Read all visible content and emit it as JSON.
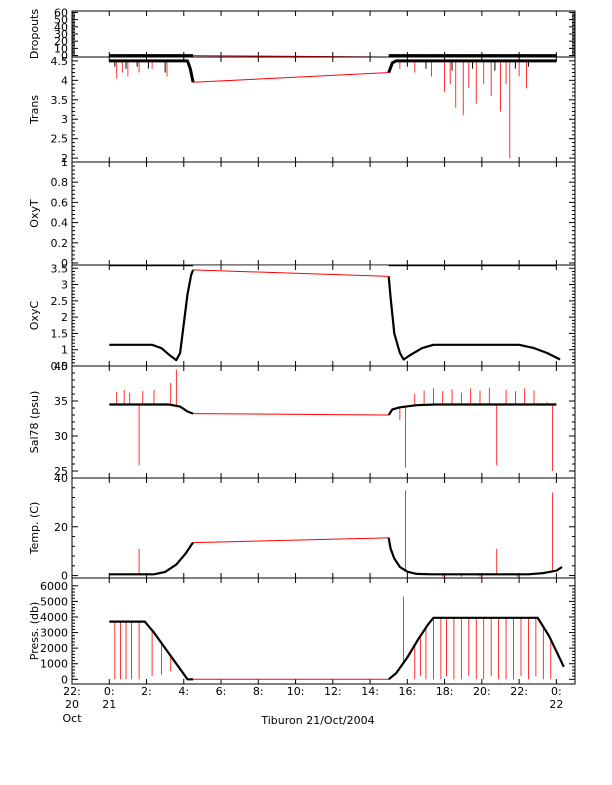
{
  "chart_data": {
    "type": "line",
    "caption": "Tiburon 21/Oct/2004",
    "colors": {
      "measured": "#000000",
      "interpolated": "#ff0000"
    },
    "x_axis": {
      "range_hours": [
        -2,
        25
      ],
      "ticks": [
        {
          "hour": -2,
          "line1": "22:",
          "line2": "20",
          "line3": "Oct"
        },
        {
          "hour": 0,
          "line1": "0:",
          "line2": "21",
          "line3": ""
        },
        {
          "hour": 2,
          "line1": "2:",
          "line2": "",
          "line3": ""
        },
        {
          "hour": 4,
          "line1": "4:",
          "line2": "",
          "line3": ""
        },
        {
          "hour": 6,
          "line1": "6:",
          "line2": "",
          "line3": ""
        },
        {
          "hour": 8,
          "line1": "8:",
          "line2": "",
          "line3": ""
        },
        {
          "hour": 10,
          "line1": "10:",
          "line2": "",
          "line3": ""
        },
        {
          "hour": 12,
          "line1": "12:",
          "line2": "",
          "line3": ""
        },
        {
          "hour": 14,
          "line1": "14:",
          "line2": "",
          "line3": ""
        },
        {
          "hour": 16,
          "line1": "16:",
          "line2": "",
          "line3": ""
        },
        {
          "hour": 18,
          "line1": "18:",
          "line2": "",
          "line3": ""
        },
        {
          "hour": 20,
          "line1": "20:",
          "line2": "",
          "line3": ""
        },
        {
          "hour": 22,
          "line1": "22:",
          "line2": "",
          "line3": ""
        },
        {
          "hour": 24,
          "line1": "0:",
          "line2": "22",
          "line3": ""
        }
      ]
    },
    "panels": [
      {
        "name": "dropouts",
        "ylabel": "Dropouts",
        "ylim": [
          -2,
          62
        ],
        "yticks": [
          0,
          10,
          20,
          30,
          40,
          50,
          60
        ],
        "measured": [
          [
            0,
            0
          ],
          [
            4.5,
            0
          ],
          [
            15,
            0
          ],
          [
            24,
            0
          ]
        ],
        "interpolated": [
          [
            4.5,
            0
          ],
          [
            15,
            -2
          ]
        ],
        "band": 1,
        "spikes_red": [],
        "spikes_black": []
      },
      {
        "name": "trans",
        "ylabel": "Trans",
        "ylim": [
          1.9,
          4.6
        ],
        "yticks": [
          2.0,
          2.5,
          3.0,
          3.5,
          4.0,
          4.5
        ],
        "measured": [
          [
            0,
            4.5
          ],
          [
            4.2,
            4.5
          ],
          [
            4.35,
            4.3
          ],
          [
            4.5,
            3.95
          ],
          [
            15,
            4.2
          ],
          [
            15.2,
            4.45
          ],
          [
            15.4,
            4.5
          ],
          [
            24,
            4.5
          ]
        ],
        "interpolated": [
          [
            4.5,
            3.95
          ],
          [
            15,
            4.2
          ]
        ],
        "band": 0.06,
        "spikes_red": [
          [
            0.4,
            4.05
          ],
          [
            0.7,
            4.2
          ],
          [
            1.0,
            4.1
          ],
          [
            1.6,
            4.2
          ],
          [
            2.3,
            4.3
          ],
          [
            3.1,
            4.1
          ],
          [
            15.6,
            4.3
          ],
          [
            16.4,
            4.2
          ],
          [
            17.3,
            4.1
          ],
          [
            18.0,
            3.7
          ],
          [
            18.3,
            3.9
          ],
          [
            18.6,
            3.3
          ],
          [
            19.0,
            3.1
          ],
          [
            19.3,
            3.8
          ],
          [
            19.7,
            3.4
          ],
          [
            20.1,
            3.9
          ],
          [
            20.5,
            3.6
          ],
          [
            21.0,
            3.2
          ],
          [
            21.3,
            3.9
          ],
          [
            21.5,
            2.0
          ],
          [
            22.0,
            4.1
          ],
          [
            22.4,
            3.8
          ]
        ],
        "spikes_black": [
          [
            0.3,
            4.35
          ],
          [
            0.9,
            4.3
          ],
          [
            1.5,
            4.35
          ],
          [
            2.1,
            4.3
          ],
          [
            3.0,
            4.2
          ],
          [
            16.0,
            4.35
          ],
          [
            17.0,
            4.3
          ],
          [
            18.4,
            4.25
          ],
          [
            19.5,
            4.3
          ],
          [
            20.7,
            4.25
          ],
          [
            21.8,
            4.3
          ],
          [
            22.5,
            4.35
          ]
        ]
      },
      {
        "name": "oxyt",
        "ylabel": "OxyT",
        "ylim": [
          -0.02,
          1.0
        ],
        "yticks": [
          0.0,
          0.2,
          0.4,
          0.6,
          0.8,
          1.0
        ],
        "measured": [],
        "interpolated": [],
        "band": 0,
        "spikes_red": [],
        "spikes_black": []
      },
      {
        "name": "oxyc",
        "ylabel": "OxyC",
        "ylim": [
          0.5,
          3.6
        ],
        "yticks": [
          0.5,
          1.0,
          1.5,
          2.0,
          2.5,
          3.0,
          3.5
        ],
        "pre_measured": [
          [
            0,
            0.0
          ],
          [
            4.5,
            0.0
          ],
          [
            15,
            0.0
          ],
          [
            24,
            0.0
          ]
        ],
        "pre_interpolated": [
          [
            4.5,
            0.0
          ],
          [
            15,
            0.0
          ]
        ],
        "measured": [
          [
            0,
            1.15
          ],
          [
            2.3,
            1.15
          ],
          [
            2.8,
            1.05
          ],
          [
            3.2,
            0.85
          ],
          [
            3.6,
            0.68
          ],
          [
            3.8,
            0.9
          ],
          [
            4.0,
            1.8
          ],
          [
            4.2,
            2.7
          ],
          [
            4.4,
            3.3
          ],
          [
            4.5,
            3.45
          ],
          [
            15,
            3.25
          ],
          [
            15.1,
            2.6
          ],
          [
            15.3,
            1.5
          ],
          [
            15.6,
            0.9
          ],
          [
            15.8,
            0.7
          ],
          [
            16.2,
            0.85
          ],
          [
            16.8,
            1.05
          ],
          [
            17.4,
            1.15
          ],
          [
            22,
            1.15
          ],
          [
            22.8,
            1.05
          ],
          [
            23.5,
            0.9
          ],
          [
            24.2,
            0.7
          ]
        ],
        "interpolated": [
          [
            4.5,
            3.45
          ],
          [
            15,
            3.25
          ]
        ],
        "band": 0,
        "spikes_red": [],
        "spikes_black": []
      },
      {
        "name": "salinity",
        "ylabel": "Sal78 (psu)",
        "ylim": [
          24,
          40
        ],
        "yticks": [
          25,
          30,
          35,
          40
        ],
        "measured": [
          [
            0,
            34.5
          ],
          [
            3.2,
            34.5
          ],
          [
            3.8,
            34.2
          ],
          [
            4.2,
            33.5
          ],
          [
            4.5,
            33.2
          ],
          [
            15,
            33.0
          ],
          [
            15.2,
            33.8
          ],
          [
            15.6,
            34.1
          ],
          [
            16.5,
            34.4
          ],
          [
            17.5,
            34.5
          ],
          [
            24,
            34.5
          ]
        ],
        "interpolated": [
          [
            4.5,
            33.2
          ],
          [
            15,
            33.0
          ]
        ],
        "band": 0,
        "spikes_red": [
          [
            0.4,
            36.3
          ],
          [
            0.8,
            36.6
          ],
          [
            1.1,
            36.2
          ],
          [
            1.6,
            25.8
          ],
          [
            1.8,
            36.4
          ],
          [
            2.4,
            36.6
          ],
          [
            3.3,
            37.6
          ],
          [
            3.6,
            39.5
          ],
          [
            15.6,
            32.3
          ],
          [
            15.9,
            25.5
          ],
          [
            16.4,
            36.0
          ],
          [
            16.9,
            36.5
          ],
          [
            17.4,
            36.8
          ],
          [
            17.9,
            36.4
          ],
          [
            18.4,
            36.7
          ],
          [
            18.9,
            36.2
          ],
          [
            19.4,
            36.8
          ],
          [
            19.9,
            36.5
          ],
          [
            20.4,
            36.9
          ],
          [
            20.8,
            25.8
          ],
          [
            21.3,
            36.6
          ],
          [
            21.8,
            36.4
          ],
          [
            22.3,
            36.8
          ],
          [
            22.8,
            36.5
          ],
          [
            23.5,
            34.8
          ],
          [
            23.8,
            25.0
          ]
        ],
        "spikes_black": []
      },
      {
        "name": "temperature",
        "ylabel": "Temp. (C)",
        "ylim": [
          -1,
          40
        ],
        "yticks": [
          0,
          20,
          40
        ],
        "measured": [
          [
            0,
            0.5
          ],
          [
            2.4,
            0.5
          ],
          [
            3.0,
            1.5
          ],
          [
            3.6,
            4.5
          ],
          [
            4.1,
            9.0
          ],
          [
            4.4,
            12.5
          ],
          [
            4.5,
            13.5
          ],
          [
            15,
            15.5
          ],
          [
            15.1,
            11.0
          ],
          [
            15.3,
            7.0
          ],
          [
            15.6,
            3.5
          ],
          [
            16.0,
            1.6
          ],
          [
            16.5,
            0.7
          ],
          [
            17.3,
            0.5
          ],
          [
            22.5,
            0.5
          ],
          [
            23.3,
            1.0
          ],
          [
            24,
            2.0
          ],
          [
            24.3,
            3.5
          ]
        ],
        "interpolated": [
          [
            4.5,
            13.5
          ],
          [
            15,
            15.5
          ]
        ],
        "band": 0,
        "spikes_red": [
          [
            1.6,
            11.0
          ],
          [
            3.2,
            2.5
          ],
          [
            3.6,
            4.5
          ],
          [
            15.9,
            35.0
          ],
          [
            17.9,
            -0.5
          ],
          [
            18.9,
            -0.5
          ],
          [
            19.9,
            -0.5
          ],
          [
            20.8,
            11.0
          ],
          [
            21.9,
            -0.5
          ],
          [
            23.8,
            34.0
          ]
        ],
        "spikes_black": []
      },
      {
        "name": "pressure",
        "ylabel": "Press. (db)",
        "ylim": [
          -300,
          6500
        ],
        "yticks": [
          0,
          1000,
          2000,
          3000,
          4000,
          5000,
          6000
        ],
        "measured": [
          [
            0,
            3700
          ],
          [
            1.9,
            3700
          ],
          [
            2.4,
            3000
          ],
          [
            3.0,
            2000
          ],
          [
            3.6,
            1000
          ],
          [
            4.2,
            0
          ],
          [
            4.5,
            0
          ],
          [
            15,
            0
          ],
          [
            15.4,
            400
          ],
          [
            16.0,
            1400
          ],
          [
            16.6,
            2600
          ],
          [
            17.1,
            3500
          ],
          [
            17.4,
            3950
          ],
          [
            23.0,
            3950
          ],
          [
            23.6,
            2800
          ],
          [
            24.0,
            1800
          ],
          [
            24.4,
            800
          ]
        ],
        "interpolated": [
          [
            4.5,
            0
          ],
          [
            15,
            0
          ]
        ],
        "band": 0,
        "spikes_red": [
          [
            0.3,
            0
          ],
          [
            0.6,
            0
          ],
          [
            0.9,
            0
          ],
          [
            1.2,
            0
          ],
          [
            1.6,
            0
          ],
          [
            2.3,
            200
          ],
          [
            2.8,
            300
          ],
          [
            3.3,
            500
          ],
          [
            15.8,
            5300
          ],
          [
            16.4,
            0
          ],
          [
            16.7,
            200
          ],
          [
            17.0,
            0
          ],
          [
            17.4,
            0
          ],
          [
            17.8,
            0
          ],
          [
            18.1,
            200
          ],
          [
            18.5,
            0
          ],
          [
            18.9,
            0
          ],
          [
            19.3,
            200
          ],
          [
            19.7,
            0
          ],
          [
            20.1,
            0
          ],
          [
            20.5,
            200
          ],
          [
            20.9,
            0
          ],
          [
            21.3,
            0
          ],
          [
            21.7,
            0
          ],
          [
            22.1,
            200
          ],
          [
            22.5,
            0
          ],
          [
            22.9,
            200
          ],
          [
            23.3,
            0
          ],
          [
            23.7,
            0
          ]
        ],
        "spikes_black": []
      }
    ]
  }
}
